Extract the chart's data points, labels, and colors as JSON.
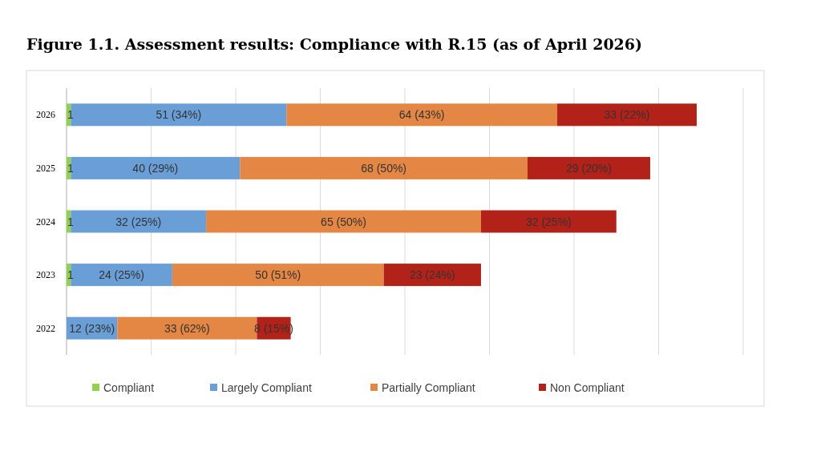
{
  "chart_data": {
    "type": "bar",
    "orientation": "horizontal",
    "stacked": true,
    "title": "Figure 1.1. Assessment results: Compliance with R.15 (as of April 2026)",
    "categories": [
      "2026",
      "2025",
      "2024",
      "2023",
      "2022"
    ],
    "xlim": [
      0,
      160
    ],
    "xticks": [
      {
        "value": 0,
        "label": null
      },
      {
        "value": 20,
        "label": null
      },
      {
        "value": 40,
        "label": null
      },
      {
        "value": 60,
        "label": null
      },
      {
        "value": 80,
        "label": null
      },
      {
        "value": 100,
        "label": null
      },
      {
        "value": 120,
        "label": null
      },
      {
        "value": 140,
        "label": null
      },
      {
        "value": 160,
        "label": null
      }
    ],
    "tick_labels": "y",
    "grid": "x",
    "legend": "bottom",
    "series": [
      {
        "name": "Compliant",
        "color": "#92d050",
        "values": [
          1,
          1,
          1,
          1,
          null
        ],
        "value_labels": [
          "1",
          "1",
          "1",
          "1",
          null
        ]
      },
      {
        "name": "Largely Compliant",
        "color": "#6a9ed6",
        "values": [
          51,
          40,
          32,
          24,
          12
        ],
        "value_labels": [
          "51 (34%)",
          "40 (29%)",
          "32 (25%)",
          "24 (25%)",
          "12 (23%)"
        ]
      },
      {
        "name": "Partially Compliant",
        "color": "#e48744",
        "values": [
          64,
          68,
          65,
          50,
          33
        ],
        "value_labels": [
          "64 (43%)",
          "68 (50%)",
          "65 (50%)",
          "50 (51%)",
          "33 (62%)"
        ]
      },
      {
        "name": "Non Compliant",
        "color": "#b32218",
        "values": [
          33,
          29,
          32,
          23,
          8
        ],
        "value_labels": [
          "33 (22%)",
          "29 (20%)",
          "32 (25%)",
          "23 (24%)",
          "8 (15%)"
        ]
      }
    ]
  }
}
